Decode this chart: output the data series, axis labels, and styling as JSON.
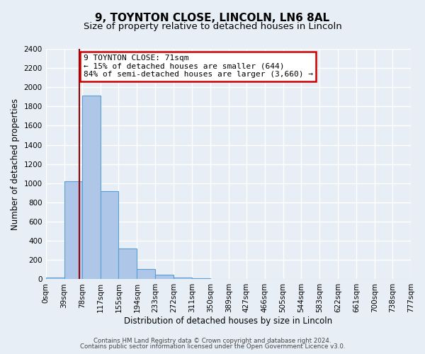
{
  "title": "9, TOYNTON CLOSE, LINCOLN, LN6 8AL",
  "subtitle": "Size of property relative to detached houses in Lincoln",
  "xlabel": "Distribution of detached houses by size in Lincoln",
  "ylabel": "Number of detached properties",
  "bar_values": [
    20,
    1020,
    1910,
    920,
    320,
    110,
    50,
    20,
    10,
    0,
    0,
    0,
    0,
    0,
    0,
    0,
    0,
    0,
    0,
    5
  ],
  "bin_edges": [
    0,
    39,
    78,
    117,
    155,
    194,
    233,
    272,
    311,
    350,
    389,
    427,
    466,
    505,
    544,
    583,
    622,
    661,
    700,
    738,
    777
  ],
  "tick_labels": [
    "0sqm",
    "39sqm",
    "78sqm",
    "117sqm",
    "155sqm",
    "194sqm",
    "233sqm",
    "272sqm",
    "311sqm",
    "350sqm",
    "389sqm",
    "427sqm",
    "466sqm",
    "505sqm",
    "544sqm",
    "583sqm",
    "622sqm",
    "661sqm",
    "700sqm",
    "738sqm",
    "777sqm"
  ],
  "bar_color": "#aec6e8",
  "bar_edge_color": "#5a9fd4",
  "red_line_x": 71,
  "ylim": [
    0,
    2400
  ],
  "yticks": [
    0,
    200,
    400,
    600,
    800,
    1000,
    1200,
    1400,
    1600,
    1800,
    2000,
    2200,
    2400
  ],
  "annotation_title": "9 TOYNTON CLOSE: 71sqm",
  "annotation_line1": "← 15% of detached houses are smaller (644)",
  "annotation_line2": "84% of semi-detached houses are larger (3,660) →",
  "annotation_box_color": "#ffffff",
  "annotation_box_edge": "#cc0000",
  "footer1": "Contains HM Land Registry data © Crown copyright and database right 2024.",
  "footer2": "Contains public sector information licensed under the Open Government Licence v3.0.",
  "background_color": "#e8eef5",
  "plot_bg_color": "#e8eef5",
  "grid_color": "#ffffff",
  "title_fontsize": 11,
  "subtitle_fontsize": 9.5,
  "axis_label_fontsize": 8.5,
  "tick_fontsize": 7.5,
  "annotation_fontsize": 8
}
